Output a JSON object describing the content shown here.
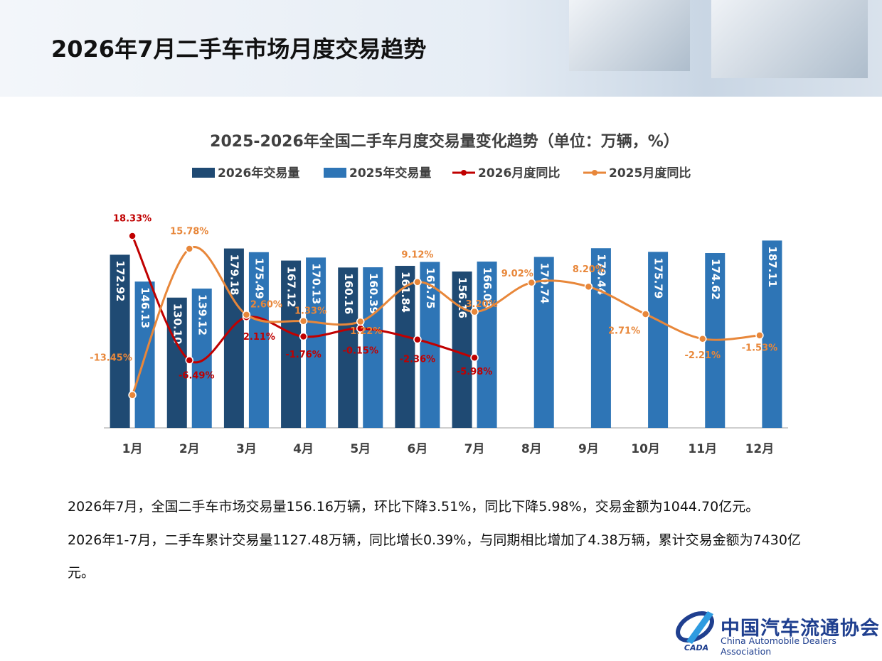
{
  "header": {
    "title": "2026年7月二手车市场月度交易趋势"
  },
  "chart_data": {
    "type": "bar-line",
    "title": "2025-2026年全国二手车月度交易量变化趋势（单位：万辆，%）",
    "categories": [
      "1月",
      "2月",
      "3月",
      "4月",
      "5月",
      "6月",
      "7月",
      "8月",
      "9月",
      "10月",
      "11月",
      "12月"
    ],
    "ylim": [
      0,
      230
    ],
    "y2lim": [
      -20,
      26
    ],
    "series": [
      {
        "name": "2026年交易量",
        "kind": "bar",
        "color": "#1f4a73",
        "values": [
          172.92,
          130.1,
          179.18,
          167.12,
          160.16,
          161.84,
          156.16,
          null,
          null,
          null,
          null,
          null
        ],
        "value_labels": [
          "172.92",
          "130.10",
          "179.18",
          "167.12",
          "160.16",
          "161.84",
          "156.16",
          null,
          null,
          null,
          null,
          null
        ]
      },
      {
        "name": "2025年交易量",
        "kind": "bar",
        "color": "#2e75b6",
        "values": [
          146.13,
          139.12,
          175.49,
          170.13,
          160.39,
          165.75,
          166.09,
          170.74,
          179.44,
          175.79,
          174.62,
          187.11
        ],
        "value_labels": [
          "146.13",
          "139.12",
          "175.49",
          "170.13",
          "160.39",
          "165.75",
          "166.09",
          "170.74",
          "179.44",
          "175.79",
          "174.62",
          "187.11"
        ]
      },
      {
        "name": "2026月度同比",
        "kind": "line",
        "axis": "y2",
        "color": "#c00000",
        "values": [
          18.33,
          -6.49,
          2.11,
          -1.76,
          -0.15,
          -2.36,
          -5.98,
          null,
          null,
          null,
          null,
          null
        ],
        "value_labels": [
          "18.33%",
          "-6.49%",
          "2.11%",
          "-1.76%",
          "-0.15%",
          "-2.36%",
          "-5.98%",
          null,
          null,
          null,
          null,
          null
        ]
      },
      {
        "name": "2025月度同比",
        "kind": "line",
        "axis": "y2",
        "color": "#e8873a",
        "values": [
          -13.45,
          15.78,
          2.6,
          1.33,
          1.22,
          9.12,
          3.2,
          9.02,
          8.2,
          2.71,
          -2.21,
          -1.53
        ],
        "value_labels": [
          "-13.45%",
          "15.78%",
          "2.60%",
          "1.33%",
          "1.22%",
          "9.12%",
          "3.20%",
          "9.02%",
          "8.20%",
          "2.71%",
          "-2.21%",
          "-1.53%"
        ]
      }
    ]
  },
  "text": {
    "paragraphs": [
      "2026年7月，全国二手车市场交易量156.16万辆，环比下降3.51%，同比下降5.98%，交易金额为1044.70亿元。",
      "2026年1-7月，二手车累计交易量1127.48万辆，同比增长0.39%，与同期相比增加了4.38万辆，累计交易金额为7430亿元。"
    ]
  },
  "logo": {
    "name": "中国汽车流通协会",
    "english": "China Automobile Dealers Association",
    "abbr": "CADA"
  }
}
